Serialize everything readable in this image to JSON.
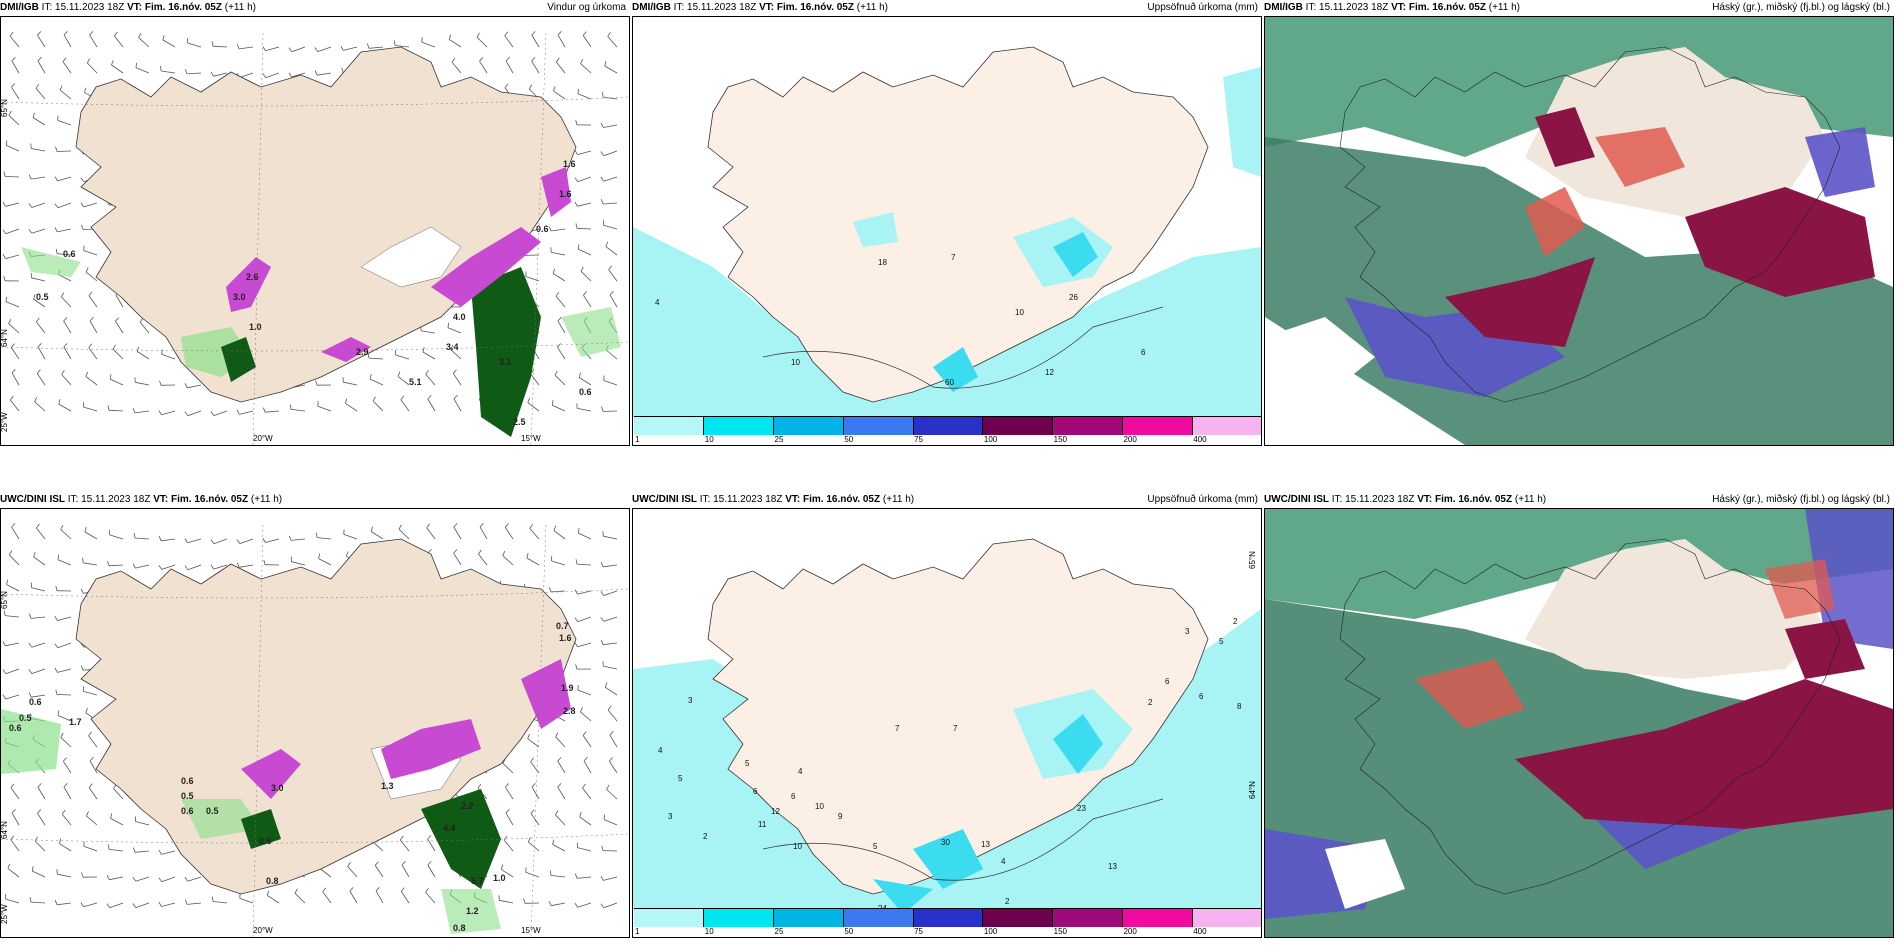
{
  "panels": [
    {
      "model": "DMI/IGB",
      "it_label": "IT:",
      "it": "15.11.2023 18Z",
      "vt_label": "VT:",
      "vt": "Fim. 16.nóv. 05Z",
      "lead": "(+11 h)",
      "title": "Vindur og úrkoma",
      "ticks": [
        "65°N",
        "64°N",
        "25°W",
        "20°W",
        "15°W"
      ],
      "values": [
        "1.6",
        "1.6",
        "0.6",
        "0.6",
        "0.5",
        "2.6",
        "3.0",
        "1.0",
        "4.0",
        "2.9",
        "3.4",
        "3.1",
        "5.1",
        "0.6",
        "2.5"
      ]
    },
    {
      "model": "DMI/IGB",
      "it_label": "IT:",
      "it": "15.11.2023 18Z",
      "vt_label": "VT:",
      "vt": "Fim. 16.nóv. 05Z",
      "lead": "(+11 h)",
      "title": "Uppsöfnuð úrkoma (mm)",
      "values": [
        "4",
        "10",
        "18",
        "7",
        "10",
        "26",
        "12",
        "6",
        "60"
      ],
      "colorbar": {
        "labels": [
          "1",
          "10",
          "25",
          "50",
          "75",
          "100",
          "150",
          "200",
          "400"
        ],
        "colors": [
          "#b3f7f7",
          "#00e6f0",
          "#00b4e6",
          "#3c78f0",
          "#2832c8",
          "#6e0050",
          "#a00a78",
          "#f00aa0",
          "#f5b4f0"
        ]
      }
    },
    {
      "model": "DMI/IGB",
      "it_label": "IT:",
      "it": "15.11.2023 18Z",
      "vt_label": "VT:",
      "vt": "Fim. 16.nóv. 05Z",
      "lead": "(+11 h)",
      "title": "Háský (gr.), miðský (fj.bl.) og lágský (bl.)"
    },
    {
      "model": "UWC/DINI ISL",
      "it_label": "IT:",
      "it": "15.11.2023 18Z",
      "vt_label": "VT:",
      "vt": "Fim. 16.nóv. 05Z",
      "lead": "(+11 h)",
      "title": "",
      "ticks": [
        "65°N",
        "64°N",
        "25°W",
        "20°W",
        "15°W"
      ],
      "values": [
        "0.6",
        "0.5",
        "0.6",
        "1.7",
        "0.6",
        "0.5",
        "0.6",
        "0.5",
        "3.0",
        "0.6",
        "1.3",
        "4.4",
        "2.2",
        "5.7",
        "1.0",
        "0.8",
        "1.2",
        "0.8",
        "0.7",
        "1.6",
        "1.9",
        "2.8"
      ]
    },
    {
      "model": "UWC/DINI ISL",
      "it_label": "IT:",
      "it": "15.11.2023 18Z",
      "vt_label": "VT:",
      "vt": "Fim. 16.nóv. 05Z",
      "lead": "(+11 h)",
      "title": "Uppsöfnuð úrkoma (mm)",
      "ticks": [
        "65°N",
        "64°N"
      ],
      "values": [
        "3",
        "4",
        "5",
        "3",
        "2",
        "6",
        "5",
        "4",
        "7",
        "7",
        "6",
        "12",
        "10",
        "11",
        "9",
        "10",
        "5",
        "30",
        "13",
        "24",
        "28",
        "4",
        "2",
        "23",
        "13",
        "10",
        "3",
        "2",
        "5",
        "6",
        "6",
        "8",
        "2"
      ],
      "colorbar": {
        "labels": [
          "1",
          "10",
          "25",
          "50",
          "75",
          "100",
          "150",
          "200",
          "400"
        ],
        "colors": [
          "#b3f7f7",
          "#00e6f0",
          "#00b4e6",
          "#3c78f0",
          "#2832c8",
          "#6e0050",
          "#a00a78",
          "#f00aa0",
          "#f5b4f0"
        ]
      }
    },
    {
      "model": "UWC/DINI ISL",
      "it_label": "IT:",
      "it": "15.11.2023 18Z",
      "vt_label": "VT:",
      "vt": "Fim. 16.nóv. 05Z",
      "lead": "(+11 h)",
      "title": "Háský (gr.), miðský (fj.bl.) og lágský (bl.)"
    }
  ],
  "colors": {
    "land": "#f0e1d0",
    "land_light": "#fcf0e6",
    "precip_green": "#8be08b",
    "precip_dark": "#0f5a14",
    "precip_purple": "#c84ad2",
    "accum_light": "#a8f3f3",
    "accum_mid": "#3cdcf0",
    "cloud_high": "#4f9e7c",
    "cloud_mid": "#5b54c8",
    "cloud_low": "#8a1444",
    "cloud_red": "#e05a50"
  }
}
